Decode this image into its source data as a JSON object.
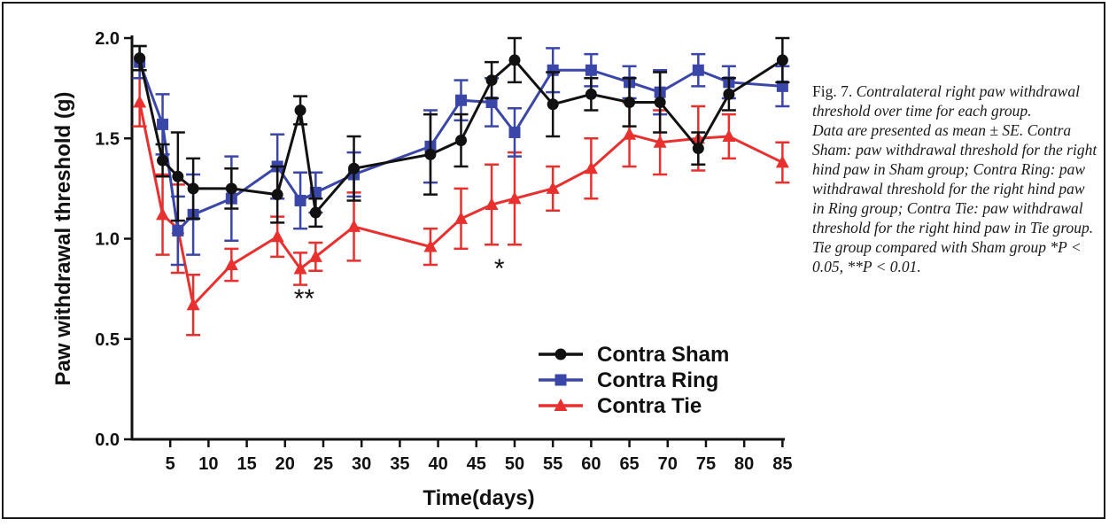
{
  "figure_caption": {
    "label": "Fig. 7.",
    "title": "Contralateral right paw withdrawal threshold over time for each group.",
    "body": "Data are presented as mean ± SE. Contra Sham: paw withdrawal threshold for the right hind paw in Sham group; Contra Ring: paw withdrawal threshold for the right hind paw in Ring group; Contra Tie: paw withdrawal threshold for the right hind paw in Tie group. Tie group compared with Sham group *P < 0.05, **P < 0.01."
  },
  "chart_data": {
    "type": "line",
    "xlabel": "Time(days)",
    "ylabel": "Paw withdrawal threshold (g)",
    "xlim": [
      0,
      86
    ],
    "ylim": [
      0,
      2.0
    ],
    "xticks": [
      5,
      10,
      15,
      20,
      25,
      30,
      35,
      40,
      45,
      50,
      55,
      60,
      65,
      70,
      75,
      80,
      85
    ],
    "yticks": [
      0.0,
      0.5,
      1.0,
      1.5,
      2.0
    ],
    "ytick_labels": [
      "0.0",
      "0.5",
      "1.0",
      "1.5",
      "2.0"
    ],
    "legend_position": "bottom-right",
    "grid": false,
    "series": [
      {
        "name": "Contra Sham",
        "color": "#111111",
        "marker": "circle",
        "x": [
          1,
          4,
          6,
          8,
          13,
          19,
          22,
          24,
          29,
          39,
          43,
          47,
          50,
          55,
          60,
          65,
          69,
          74,
          78,
          85
        ],
        "y": [
          1.9,
          1.39,
          1.31,
          1.25,
          1.25,
          1.22,
          1.64,
          1.13,
          1.35,
          1.42,
          1.49,
          1.79,
          1.89,
          1.67,
          1.72,
          1.68,
          1.68,
          1.45,
          1.72,
          1.89
        ],
        "err": [
          0.06,
          0.08,
          0.22,
          0.15,
          0.1,
          0.14,
          0.07,
          0.07,
          0.16,
          0.2,
          0.13,
          0.09,
          0.11,
          0.16,
          0.08,
          0.12,
          0.15,
          0.08,
          0.08,
          0.11
        ]
      },
      {
        "name": "Contra Ring",
        "color": "#3a46a8",
        "marker": "square",
        "x": [
          1,
          4,
          6,
          8,
          13,
          19,
          22,
          24,
          29,
          39,
          43,
          47,
          50,
          55,
          60,
          65,
          69,
          74,
          78,
          85
        ],
        "y": [
          1.88,
          1.57,
          1.04,
          1.12,
          1.2,
          1.36,
          1.19,
          1.23,
          1.32,
          1.46,
          1.69,
          1.68,
          1.53,
          1.84,
          1.84,
          1.78,
          1.73,
          1.84,
          1.78,
          1.76
        ],
        "err": [
          0.08,
          0.15,
          0.17,
          0.2,
          0.21,
          0.16,
          0.14,
          0.1,
          0.11,
          0.18,
          0.1,
          0.12,
          0.12,
          0.11,
          0.08,
          0.08,
          0.11,
          0.08,
          0.08,
          0.1
        ]
      },
      {
        "name": "Contra Tie",
        "color": "#e8302f",
        "marker": "triangle",
        "x": [
          1,
          4,
          6,
          8,
          13,
          19,
          22,
          24,
          29,
          39,
          43,
          47,
          50,
          55,
          60,
          65,
          69,
          74,
          78,
          85
        ],
        "y": [
          1.68,
          1.12,
          1.05,
          0.67,
          0.87,
          1.01,
          0.85,
          0.91,
          1.06,
          0.96,
          1.1,
          1.17,
          1.2,
          1.25,
          1.35,
          1.52,
          1.48,
          1.5,
          1.51,
          1.38
        ],
        "err": [
          0.12,
          0.2,
          0.22,
          0.15,
          0.08,
          0.1,
          0.08,
          0.07,
          0.17,
          0.09,
          0.15,
          0.2,
          0.23,
          0.11,
          0.15,
          0.16,
          0.16,
          0.16,
          0.11,
          0.1
        ]
      }
    ],
    "annotations": [
      {
        "text": "**",
        "x": 22.5,
        "y": 0.72
      },
      {
        "text": "*",
        "x": 48,
        "y": 0.87
      }
    ]
  }
}
